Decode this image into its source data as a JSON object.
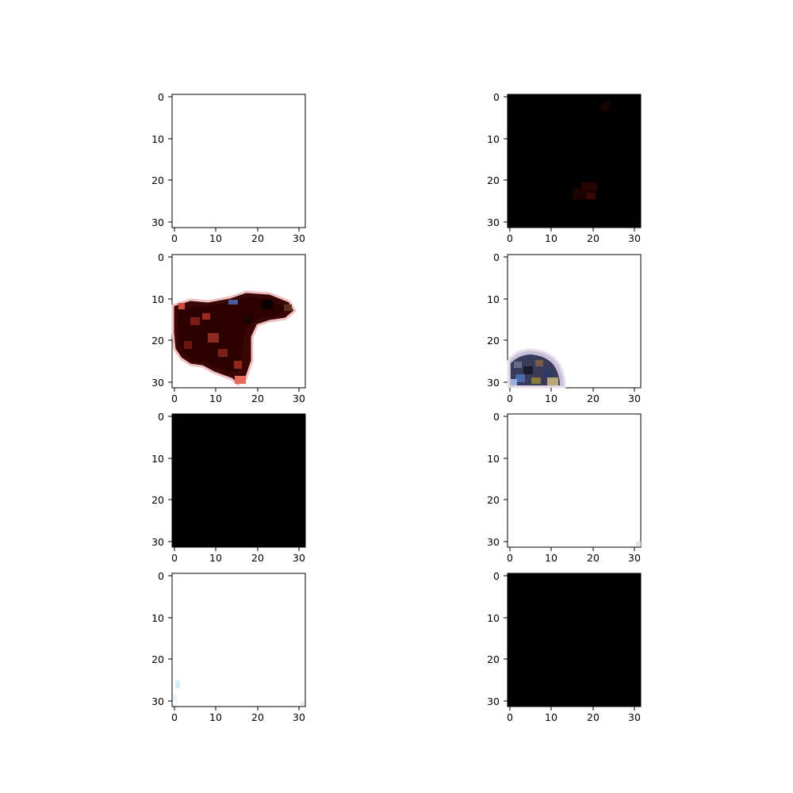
{
  "figure": {
    "rows": 4,
    "cols": 2,
    "xticks": [
      "0",
      "10",
      "20",
      "30"
    ],
    "yticks": [
      "0",
      "10",
      "20",
      "30"
    ],
    "panels": [
      {
        "id": "p1",
        "background": "#ffffff",
        "content": "blank white image"
      },
      {
        "id": "p2",
        "background": "#000000",
        "content": "black image with two faint dark-red blobs"
      },
      {
        "id": "p3",
        "background": "#ffffff",
        "content": "dark red/brown blob shape"
      },
      {
        "id": "p4",
        "background": "#ffffff",
        "content": "small multicolored blob near bottom-left"
      },
      {
        "id": "p5",
        "background": "#000000",
        "content": "solid black image"
      },
      {
        "id": "p6",
        "background": "#ffffff",
        "content": "blank white image with tiny pink pixel at corner"
      },
      {
        "id": "p7",
        "background": "#ffffff",
        "content": "white image with faint light-blue pixels at left"
      },
      {
        "id": "p8",
        "background": "#000000",
        "content": "solid black image"
      }
    ]
  }
}
